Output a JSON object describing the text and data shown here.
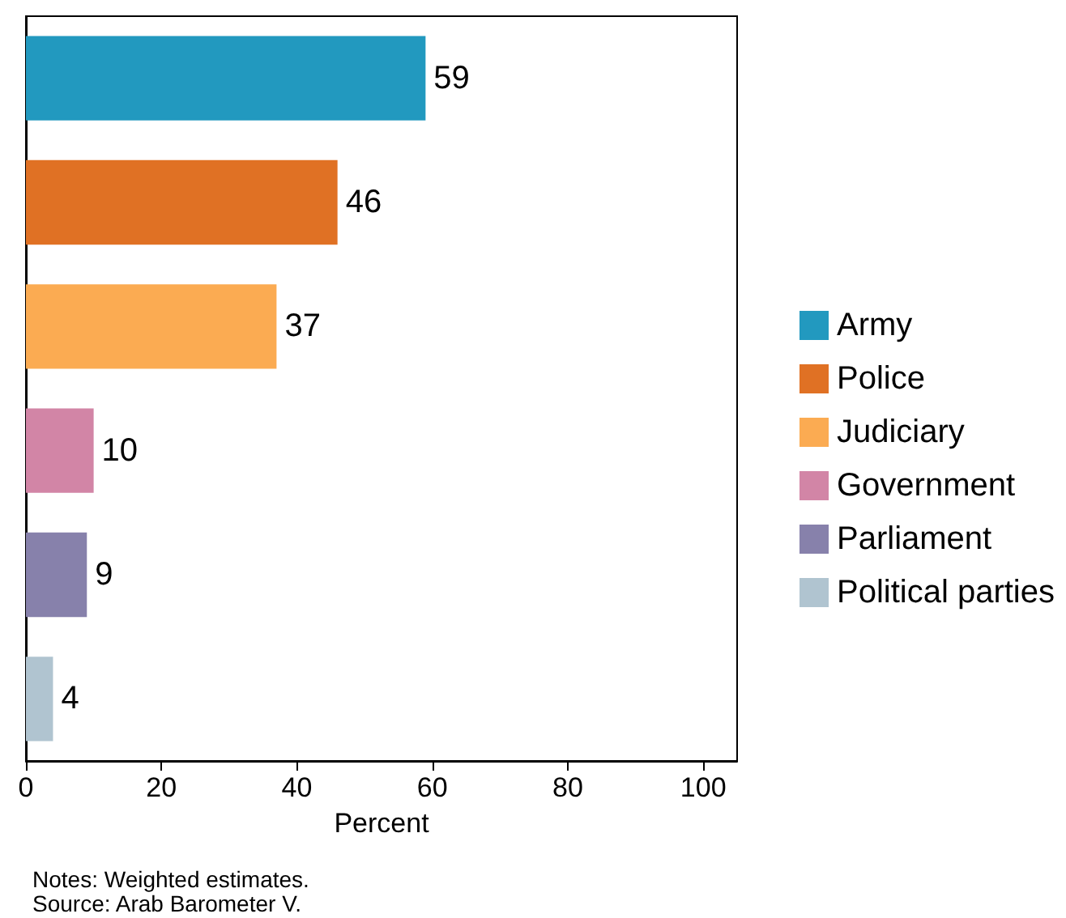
{
  "chart_data": {
    "type": "bar",
    "orientation": "horizontal",
    "categories": [
      null,
      null,
      null,
      null,
      null,
      null
    ],
    "series": [
      {
        "name": "Army",
        "color": "#2299bf",
        "values": [
          59,
          null,
          null,
          null,
          null,
          null
        ]
      },
      {
        "name": "Police",
        "color": "#e07124",
        "values": [
          null,
          46,
          null,
          null,
          null,
          null
        ]
      },
      {
        "name": "Judiciary",
        "color": "#fbab52",
        "values": [
          null,
          null,
          37,
          null,
          null,
          null
        ]
      },
      {
        "name": "Government",
        "color": "#d285a6",
        "values": [
          null,
          null,
          null,
          10,
          null,
          null
        ]
      },
      {
        "name": "Parliament",
        "color": "#8781ab",
        "values": [
          null,
          null,
          null,
          null,
          9,
          null
        ]
      },
      {
        "name": "Political parties",
        "color": "#b0c4d0",
        "values": [
          null,
          null,
          null,
          null,
          null,
          4
        ]
      }
    ],
    "xlim": [
      0,
      105
    ],
    "xticks": [
      0,
      20,
      40,
      60,
      80,
      100
    ],
    "xlabel": "Percent",
    "data_labels": true,
    "legend": "right",
    "grid": false,
    "annotations": [
      "Notes: Weighted estimates.",
      "Source: Arab Barometer V."
    ]
  }
}
